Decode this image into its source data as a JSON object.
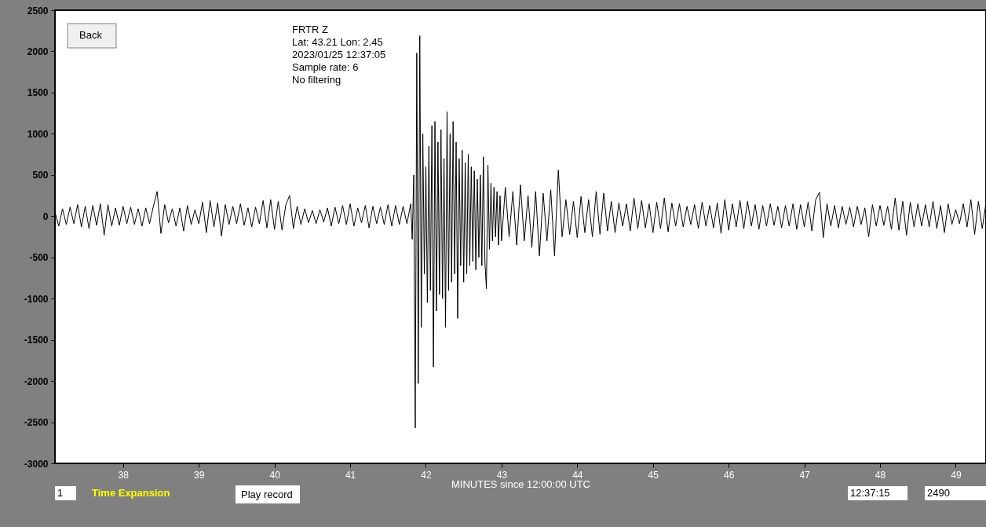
{
  "chart_data": {
    "type": "line",
    "xlabel": "MINUTES since 12:00:00 UTC",
    "annotations": [
      "FRTR  Z",
      "Lat: 43.21 Lon: 2.45",
      "2023/01/25 12:37:05",
      "Sample rate: 6",
      "No filtering",
      "Back",
      "1",
      "Time Expansion",
      "Play record",
      "12:37:15",
      "2490"
    ],
    "xlim": [
      37.1,
      49.4
    ],
    "xticks": [
      38,
      39,
      40,
      41,
      42,
      43,
      44,
      45,
      46,
      47,
      48,
      49
    ],
    "ylim": [
      -3000,
      2500
    ],
    "yticks": [
      -3000,
      -2500,
      -2000,
      -1500,
      -1000,
      -500,
      0,
      500,
      1000,
      1500,
      2000,
      2500
    ],
    "grid": false,
    "marker": "none",
    "line_style": "solid",
    "series": [
      {
        "color": "#000000",
        "x": [
          37.1,
          37.15,
          37.2,
          37.25,
          37.3,
          37.35,
          37.4,
          37.45,
          37.5,
          37.55,
          37.6,
          37.65,
          37.7,
          37.75,
          37.8,
          37.85,
          37.9,
          37.95,
          38.0,
          38.05,
          38.1,
          38.15,
          38.2,
          38.25,
          38.3,
          38.35,
          38.4,
          38.45,
          38.5,
          38.55,
          38.6,
          38.65,
          38.7,
          38.75,
          38.8,
          38.85,
          38.9,
          38.95,
          39.0,
          39.05,
          39.1,
          39.15,
          39.2,
          39.25,
          39.3,
          39.35,
          39.4,
          39.45,
          39.5,
          39.55,
          39.6,
          39.65,
          39.7,
          39.75,
          39.8,
          39.85,
          39.9,
          39.95,
          40.0,
          40.05,
          40.1,
          40.15,
          40.2,
          40.25,
          40.3,
          40.35,
          40.4,
          40.45,
          40.5,
          40.55,
          40.6,
          40.65,
          40.7,
          40.75,
          40.8,
          40.85,
          40.9,
          40.95,
          41.0,
          41.05,
          41.1,
          41.15,
          41.2,
          41.25,
          41.3,
          41.35,
          41.4,
          41.45,
          41.5,
          41.55,
          41.6,
          41.65,
          41.7,
          41.75,
          41.8,
          41.82,
          41.84,
          41.86,
          41.88,
          41.9,
          41.92,
          41.94,
          41.96,
          41.98,
          42.0,
          42.02,
          42.04,
          42.06,
          42.08,
          42.1,
          42.12,
          42.14,
          42.16,
          42.18,
          42.2,
          42.22,
          42.24,
          42.26,
          42.28,
          42.3,
          42.32,
          42.34,
          42.36,
          42.38,
          42.4,
          42.42,
          42.44,
          42.46,
          42.48,
          42.5,
          42.52,
          42.54,
          42.56,
          42.58,
          42.6,
          42.62,
          42.64,
          42.66,
          42.68,
          42.7,
          42.72,
          42.74,
          42.76,
          42.78,
          42.8,
          42.82,
          42.84,
          42.86,
          42.88,
          42.9,
          42.92,
          42.94,
          42.96,
          42.98,
          43.0,
          43.05,
          43.1,
          43.15,
          43.2,
          43.25,
          43.3,
          43.35,
          43.4,
          43.45,
          43.5,
          43.55,
          43.6,
          43.65,
          43.7,
          43.75,
          43.8,
          43.85,
          43.9,
          43.95,
          44.0,
          44.05,
          44.1,
          44.15,
          44.2,
          44.25,
          44.3,
          44.35,
          44.4,
          44.45,
          44.5,
          44.55,
          44.6,
          44.65,
          44.7,
          44.75,
          44.8,
          44.85,
          44.9,
          44.95,
          45.0,
          45.05,
          45.1,
          45.15,
          45.2,
          45.25,
          45.3,
          45.35,
          45.4,
          45.45,
          45.5,
          45.55,
          45.6,
          45.65,
          45.7,
          45.75,
          45.8,
          45.85,
          45.9,
          45.95,
          46.0,
          46.05,
          46.1,
          46.15,
          46.2,
          46.25,
          46.3,
          46.35,
          46.4,
          46.45,
          46.5,
          46.55,
          46.6,
          46.65,
          46.7,
          46.75,
          46.8,
          46.85,
          46.9,
          46.95,
          47.0,
          47.05,
          47.1,
          47.15,
          47.2,
          47.25,
          47.3,
          47.35,
          47.4,
          47.45,
          47.5,
          47.55,
          47.6,
          47.65,
          47.7,
          47.75,
          47.8,
          47.85,
          47.9,
          47.95,
          48.0,
          48.05,
          48.1,
          48.15,
          48.2,
          48.25,
          48.3,
          48.35,
          48.4,
          48.45,
          48.5,
          48.55,
          48.6,
          48.65,
          48.7,
          48.75,
          48.8,
          48.85,
          48.9,
          48.95,
          49.0,
          49.05,
          49.1,
          49.15,
          49.2,
          49.25,
          49.3,
          49.35,
          49.4
        ],
        "values": [
          50,
          -120,
          90,
          -100,
          110,
          -90,
          140,
          -130,
          120,
          -150,
          130,
          -110,
          150,
          -230,
          140,
          -120,
          100,
          -110,
          120,
          -90,
          110,
          -100,
          90,
          -120,
          100,
          -90,
          120,
          300,
          -210,
          140,
          -80,
          90,
          -120,
          100,
          -180,
          130,
          -100,
          80,
          -90,
          170,
          -200,
          190,
          -130,
          160,
          -240,
          140,
          -100,
          120,
          -90,
          150,
          -110,
          100,
          -130,
          110,
          -90,
          190,
          -140,
          200,
          -160,
          180,
          -170,
          140,
          250,
          -150,
          120,
          -100,
          90,
          -80,
          70,
          -90,
          80,
          -70,
          100,
          -120,
          110,
          -90,
          130,
          -100,
          150,
          -120,
          100,
          -80,
          130,
          -140,
          120,
          -90,
          110,
          -100,
          140,
          -120,
          130,
          -100,
          120,
          -90,
          150,
          -280,
          500,
          -2570,
          1980,
          -2030,
          2190,
          -1350,
          1000,
          -700,
          600,
          -1050,
          850,
          -900,
          1100,
          -1830,
          1150,
          -1150,
          900,
          -950,
          1050,
          -1000,
          700,
          -1350,
          1270,
          -900,
          1000,
          -800,
          1150,
          -700,
          900,
          -1240,
          700,
          -600,
          800,
          -800,
          650,
          -700,
          750,
          -600,
          600,
          -550,
          550,
          -650,
          450,
          -500,
          500,
          -600,
          720,
          -550,
          -880,
          620,
          -400,
          400,
          -300,
          350,
          -250,
          300,
          -350,
          250,
          -300,
          350,
          -250,
          300,
          -350,
          380,
          -300,
          250,
          -380,
          300,
          -480,
          280,
          -300,
          320,
          -480,
          560,
          -250,
          200,
          -220,
          180,
          -260,
          240,
          -200,
          200,
          -250,
          300,
          -220,
          280,
          -180,
          180,
          -200,
          160,
          -120,
          150,
          -180,
          220,
          -150,
          190,
          -140,
          150,
          -200,
          170,
          -150,
          220,
          -190,
          160,
          -120,
          150,
          -130,
          120,
          -100,
          140,
          -150,
          170,
          -120,
          130,
          -140,
          160,
          -210,
          200,
          -170,
          150,
          -130,
          190,
          -150,
          180,
          -120,
          140,
          -160,
          130,
          -120,
          150,
          -110,
          120,
          -140,
          130,
          -120,
          150,
          -160,
          140,
          -130,
          170,
          -180,
          200,
          290,
          -260,
          150,
          -120,
          130,
          -140,
          120,
          -100,
          110,
          -130,
          120,
          -100,
          100,
          -250,
          140,
          -120,
          130,
          -110,
          120,
          -160,
          220,
          -170,
          180,
          -230,
          170,
          -130,
          150,
          -120,
          140,
          -130,
          180,
          -150,
          130,
          -200,
          150,
          -100,
          80,
          -90,
          150,
          -130,
          200,
          -220,
          180,
          -150,
          160
        ]
      }
    ]
  }
}
